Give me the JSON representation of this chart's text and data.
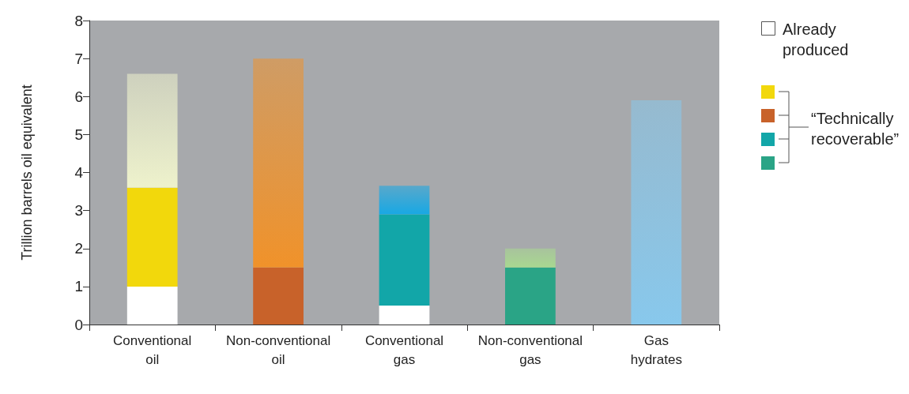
{
  "chart_data": {
    "type": "bar",
    "stacked": true,
    "ylabel": "Trillion barrels oil equivalent",
    "categories": [
      "Conventional oil",
      "Non-conventional oil",
      "Conventional gas",
      "Non-conventional gas",
      "Gas hydrates"
    ],
    "series": [
      {
        "name": "Already produced",
        "color": "#ffffff",
        "values": [
          1.0,
          0,
          0.5,
          0,
          0
        ]
      },
      {
        "name": "“Technically recoverable”",
        "colors": [
          "#f2d80c",
          "#c8622a",
          "#12a6a8",
          "#2aa486",
          "#88c8ec"
        ],
        "values": [
          2.6,
          1.5,
          2.4,
          1.5,
          0
        ]
      },
      {
        "colors": [
          "#eef2cc",
          "#f0922a",
          "#18a8e4",
          "#a8d890",
          "#88c8ec"
        ],
        "values": [
          3.0,
          5.5,
          0.75,
          0.5,
          5.9
        ]
      }
    ],
    "ylim": [
      0,
      8
    ],
    "yticks": [
      0,
      1,
      2,
      3,
      4,
      5,
      6,
      7,
      8
    ],
    "grid": false,
    "legend": "right"
  }
}
